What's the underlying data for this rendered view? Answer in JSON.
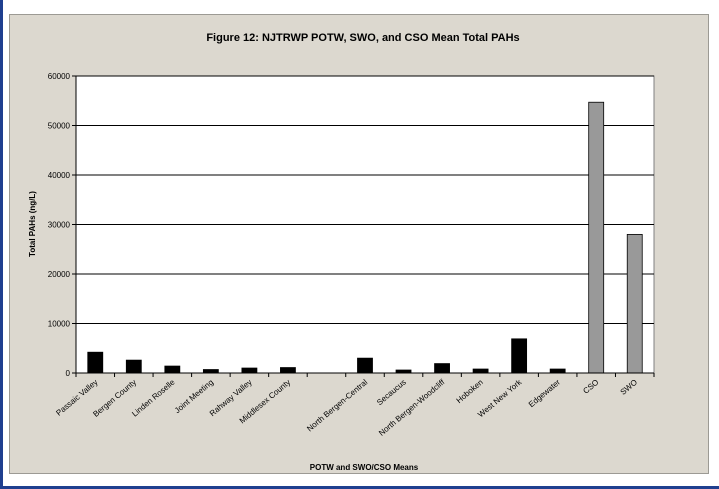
{
  "chart_data": {
    "type": "bar",
    "title": "Figure 12: NJTRWP POTW, SWO, and CSO Mean Total PAHs",
    "xlabel": "POTW and SWO/CSO Means",
    "ylabel": "Total PAHs (ng/L)",
    "ylim": [
      0,
      60000
    ],
    "yticks": [
      0,
      10000,
      20000,
      30000,
      40000,
      50000,
      60000
    ],
    "grid": true,
    "categories": [
      "Passaic Valley",
      "Bergen County",
      "Linden Roselle",
      "Joint Meeting",
      "Rahway Valley",
      "Middlesex County",
      "",
      "North Bergen-Central",
      "Secaucus",
      "North Bergen-Woodcliff",
      "Hoboken",
      "West New York",
      "Edgewater",
      "CSO",
      "SWO"
    ],
    "values": [
      4200,
      2600,
      1400,
      700,
      1000,
      1100,
      null,
      3000,
      600,
      1900,
      800,
      6900,
      800,
      54700,
      28000
    ],
    "colors": [
      "#000000",
      "#000000",
      "#000000",
      "#000000",
      "#000000",
      "#000000",
      "#000000",
      "#000000",
      "#000000",
      "#000000",
      "#000000",
      "#000000",
      "#000000",
      "#999999",
      "#999999"
    ],
    "background": "#dcd8cf",
    "plot_background": "#ffffff"
  }
}
